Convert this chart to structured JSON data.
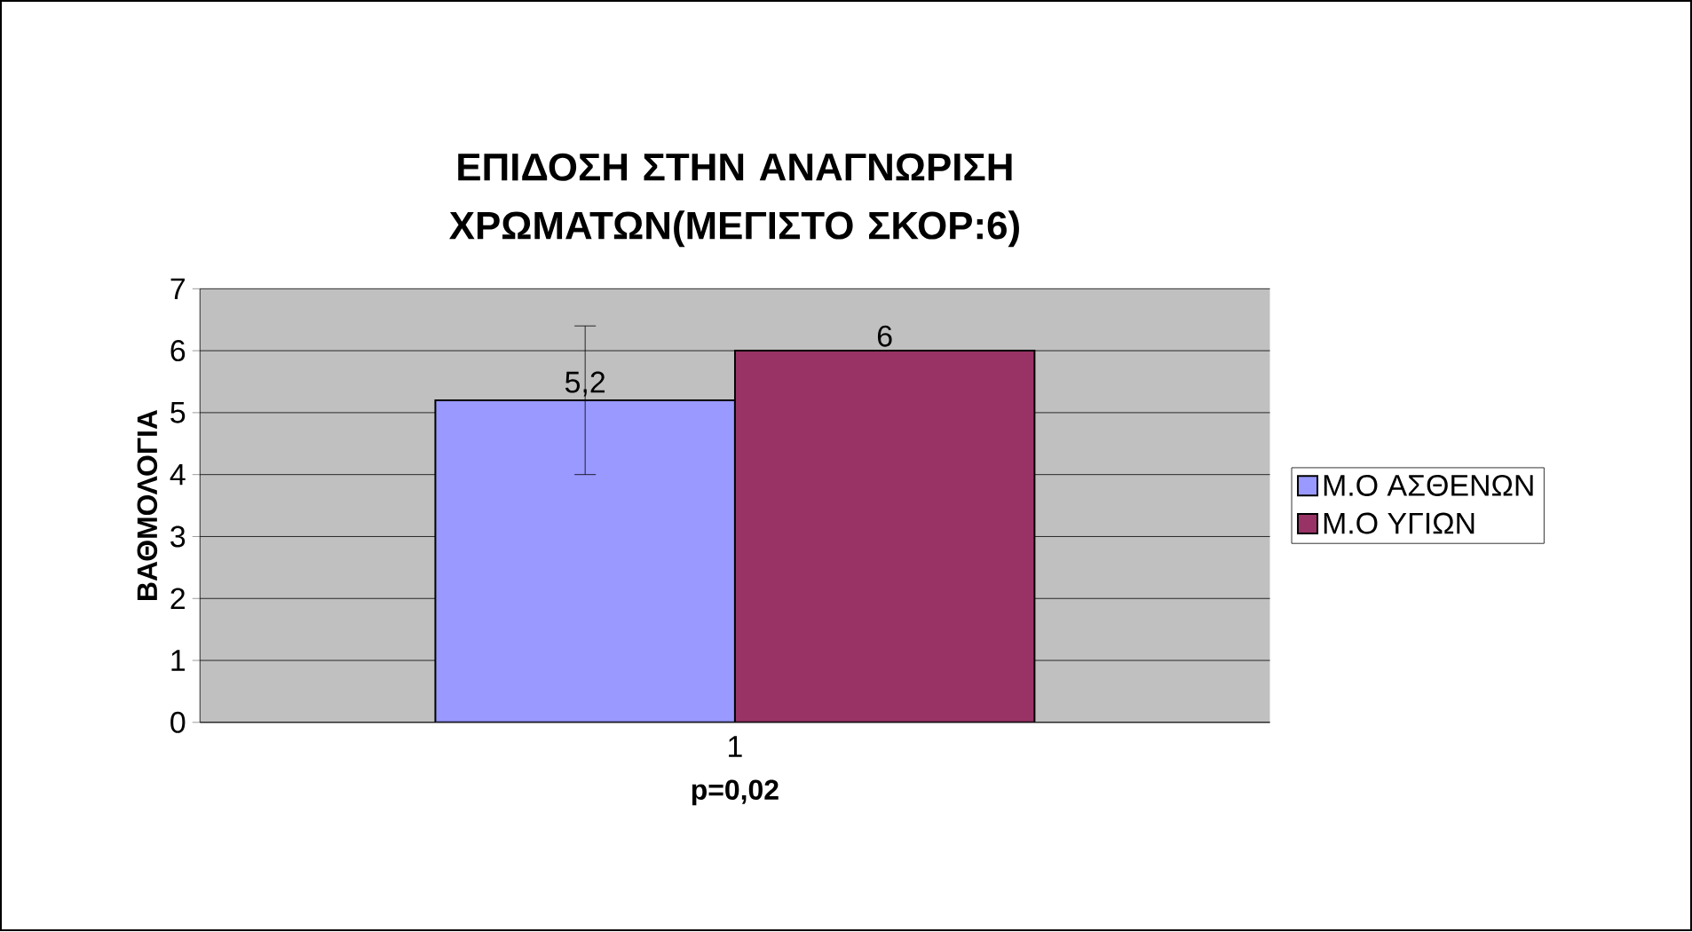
{
  "chart_data": {
    "type": "bar",
    "title": "ΕΠΙΔΟΣΗ ΣΤΗΝ ΑΝΑΓΝΩΡΙΣΗ ΧΡΩΜΑΤΩΝ(ΜΕΓΙΣΤΟ ΣΚΟΡ:6)",
    "xlabel": "p=0,02",
    "ylabel": "ΒΑΘΜΟΛΟΓΙΑ",
    "categories": [
      "1"
    ],
    "series": [
      {
        "name": "Μ.Ο ΑΣΘΕΝΩΝ",
        "color": "#9999ff",
        "values": [
          5.2
        ],
        "errors": [
          1.2
        ],
        "value_labels": [
          "5,2"
        ]
      },
      {
        "name": "Μ.Ο ΥΓΙΩΝ",
        "color": "#993366",
        "values": [
          6
        ],
        "value_labels": [
          "6"
        ]
      }
    ],
    "ylim": [
      0,
      7
    ],
    "yticks": [
      0,
      1,
      2,
      3,
      4,
      5,
      6,
      7
    ],
    "grid": "y",
    "legend": "right"
  }
}
